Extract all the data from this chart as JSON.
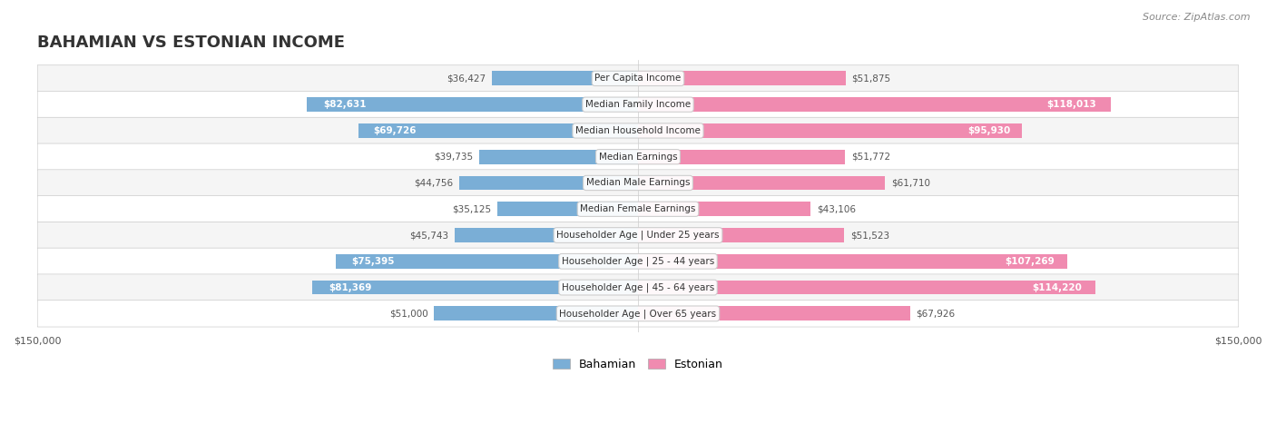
{
  "title": "BAHAMIAN VS ESTONIAN INCOME",
  "source": "Source: ZipAtlas.com",
  "categories": [
    "Per Capita Income",
    "Median Family Income",
    "Median Household Income",
    "Median Earnings",
    "Median Male Earnings",
    "Median Female Earnings",
    "Householder Age | Under 25 years",
    "Householder Age | 25 - 44 years",
    "Householder Age | 45 - 64 years",
    "Householder Age | Over 65 years"
  ],
  "bahamian_values": [
    36427,
    82631,
    69726,
    39735,
    44756,
    35125,
    45743,
    75395,
    81369,
    51000
  ],
  "estonian_values": [
    51875,
    118013,
    95930,
    51772,
    61710,
    43106,
    51523,
    107269,
    114220,
    67926
  ],
  "bahamian_labels": [
    "$36,427",
    "$82,631",
    "$69,726",
    "$39,735",
    "$44,756",
    "$35,125",
    "$45,743",
    "$75,395",
    "$81,369",
    "$51,000"
  ],
  "estonian_labels": [
    "$51,875",
    "$118,013",
    "$95,930",
    "$51,772",
    "$61,710",
    "$43,106",
    "$51,523",
    "$107,269",
    "$114,220",
    "$67,926"
  ],
  "max_value": 150000,
  "bahamian_color": "#7aaed6",
  "estonian_color": "#f08bb0",
  "bahamian_color_dark": "#5b8fc4",
  "estonian_color_dark": "#e8608a",
  "bar_bg_color": "#f0f0f0",
  "row_bg_color": "#f5f5f5",
  "row_bg_alt": "#ffffff",
  "label_bg_color": "#ffffff",
  "title_color": "#333333",
  "text_color": "#555555",
  "bar_height": 0.55,
  "fig_width": 14.06,
  "fig_height": 4.67
}
